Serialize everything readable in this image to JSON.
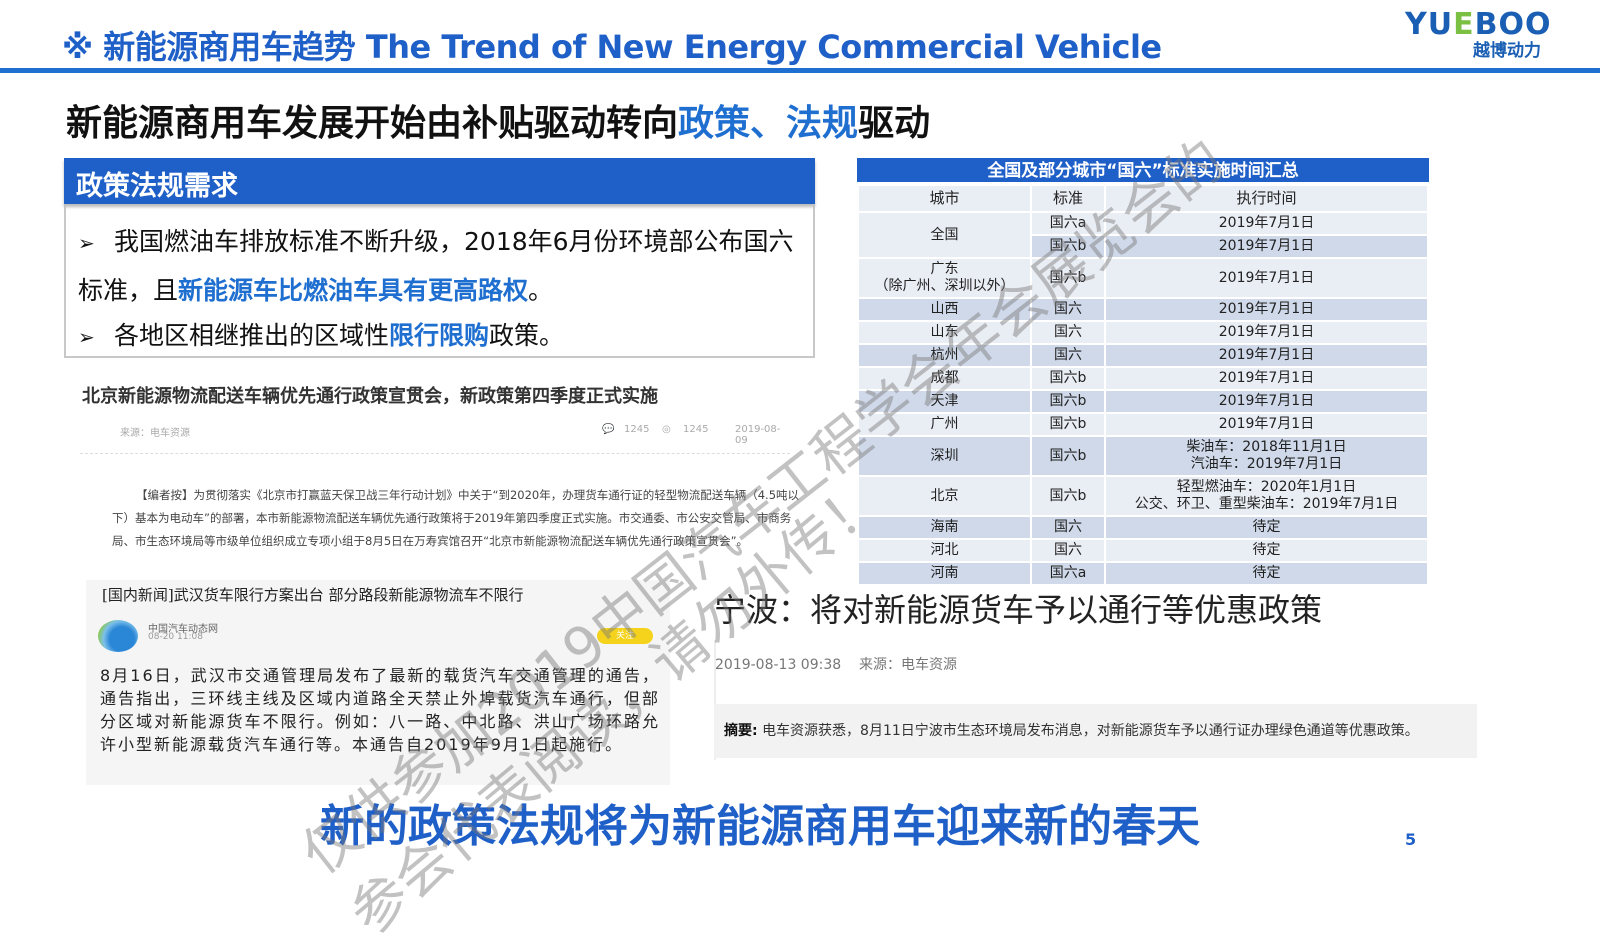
{
  "header": {
    "title": "※ 新能源商用车趋势 The Trend of New Energy Commercial Vehicle",
    "logo_en": "YUEBOO",
    "logo_cn": "越博动力",
    "accent": "#1f5fc8"
  },
  "headline": {
    "pre": "新能源商用车发展开始由补贴驱动转向",
    "hl1": "政策",
    "sep": "、",
    "hl2": "法规",
    "post": "驱动"
  },
  "policy": {
    "heading": "政策法规需求",
    "bullet_icon": "arrow-right-icon",
    "b1_pre": "我国燃油车排放标准不断升级，2018年6月份环境部公布国六标准，且",
    "b1_hl": "新能源车比燃油车具有更高路权",
    "b1_post": "。",
    "b2_pre": "各地区相继推出的区域性",
    "b2_hl": "限行限购",
    "b2_post": "政策。"
  },
  "beijing": {
    "title": "北京新能源物流配送车辆优先通行政策宣贯会，新政策第四季度正式实施",
    "source": "来源：电车资源",
    "comments": "1245",
    "views": "1245",
    "date": "2019-08-09",
    "body": "【编者按】为贯彻落实《北京市打赢蓝天保卫战三年行动计划》中关于“到2020年，办理货车通行证的轻型物流配送车辆（4.5吨以下）基本为电动车”的部署，本市新能源物流配送车辆优先通行政策将于2019年第四季度正式实施。市交通委、市公安交管局、市商务局、市生态环境局等市级单位组织成立专项小组于8月5日在万寿宾馆召开“北京市新能源物流配送车辆优先通行政策宣贯会”。"
  },
  "wuhan": {
    "title": "[国内新闻]武汉货车限行方案出台 部分路段新能源物流车不限行",
    "source": "中国汽车动态网",
    "time": "08-20 11:08",
    "follow": "关注",
    "body": "8月16日，武汉市交通管理局发布了最新的载货汽车交通管理的通告，通告指出，三环线主线及区域内道路全天禁止外埠载货汽车通行，但部分区域对新能源货车不限行。例如：八一路、中北路、洪山广场环路允许小型新能源载货汽车通行等。本通告自2019年9月1日起施行。"
  },
  "ningbo": {
    "title": "宁波：将对新能源货车予以通行等优惠政策",
    "date": "2019-08-13 09:38",
    "source": "来源：电车资源",
    "summary_label": "摘要:",
    "summary": "电车资源获悉，8月11日宁波市生态环境局发布消息，对新能源货车予以通行证办理绿色通道等优惠政策。"
  },
  "table": {
    "title": "全国及部分城市“国六”标准实施时间汇总",
    "columns": [
      "城市",
      "标准",
      "执行时间"
    ],
    "rows": [
      {
        "city": "全国",
        "std": "国六a",
        "time": "2019年7月1日"
      },
      {
        "city": "",
        "std": "国六b",
        "time": "2019年7月1日"
      },
      {
        "city": "广东\n（除广州、深圳以外）",
        "std": "国六b",
        "time": "2019年7月1日"
      },
      {
        "city": "山西",
        "std": "国六",
        "time": "2019年7月1日"
      },
      {
        "city": "山东",
        "std": "国六",
        "time": "2019年7月1日"
      },
      {
        "city": "杭州",
        "std": "国六",
        "time": "2019年7月1日"
      },
      {
        "city": "成都",
        "std": "国六b",
        "time": "2019年7月1日"
      },
      {
        "city": "天津",
        "std": "国六b",
        "time": "2019年7月1日"
      },
      {
        "city": "广州",
        "std": "国六b",
        "time": "2019年7月1日"
      },
      {
        "city": "深圳",
        "std": "国六b",
        "time": "柴油车：2018年11月1日\n汽油车：2019年7月1日"
      },
      {
        "city": "北京",
        "std": "国六b",
        "time": "轻型燃油车：2020年1月1日\n公交、环卫、重型柴油车：2019年7月1日"
      },
      {
        "city": "海南",
        "std": "国六",
        "time": "待定"
      },
      {
        "city": "河北",
        "std": "国六",
        "time": "待定"
      },
      {
        "city": "河南",
        "std": "国六a",
        "time": "待定"
      }
    ],
    "row_colors": [
      "#cfd9ea",
      "#e9edf4"
    ]
  },
  "closing": "新的政策法规将为新能源商用车迎来新的春天",
  "page_number": "5",
  "watermark": {
    "line1": "仅供参加2019中国汽车工程学会年会展览会的",
    "line2": "参会代表阅读，请勿外传！"
  }
}
